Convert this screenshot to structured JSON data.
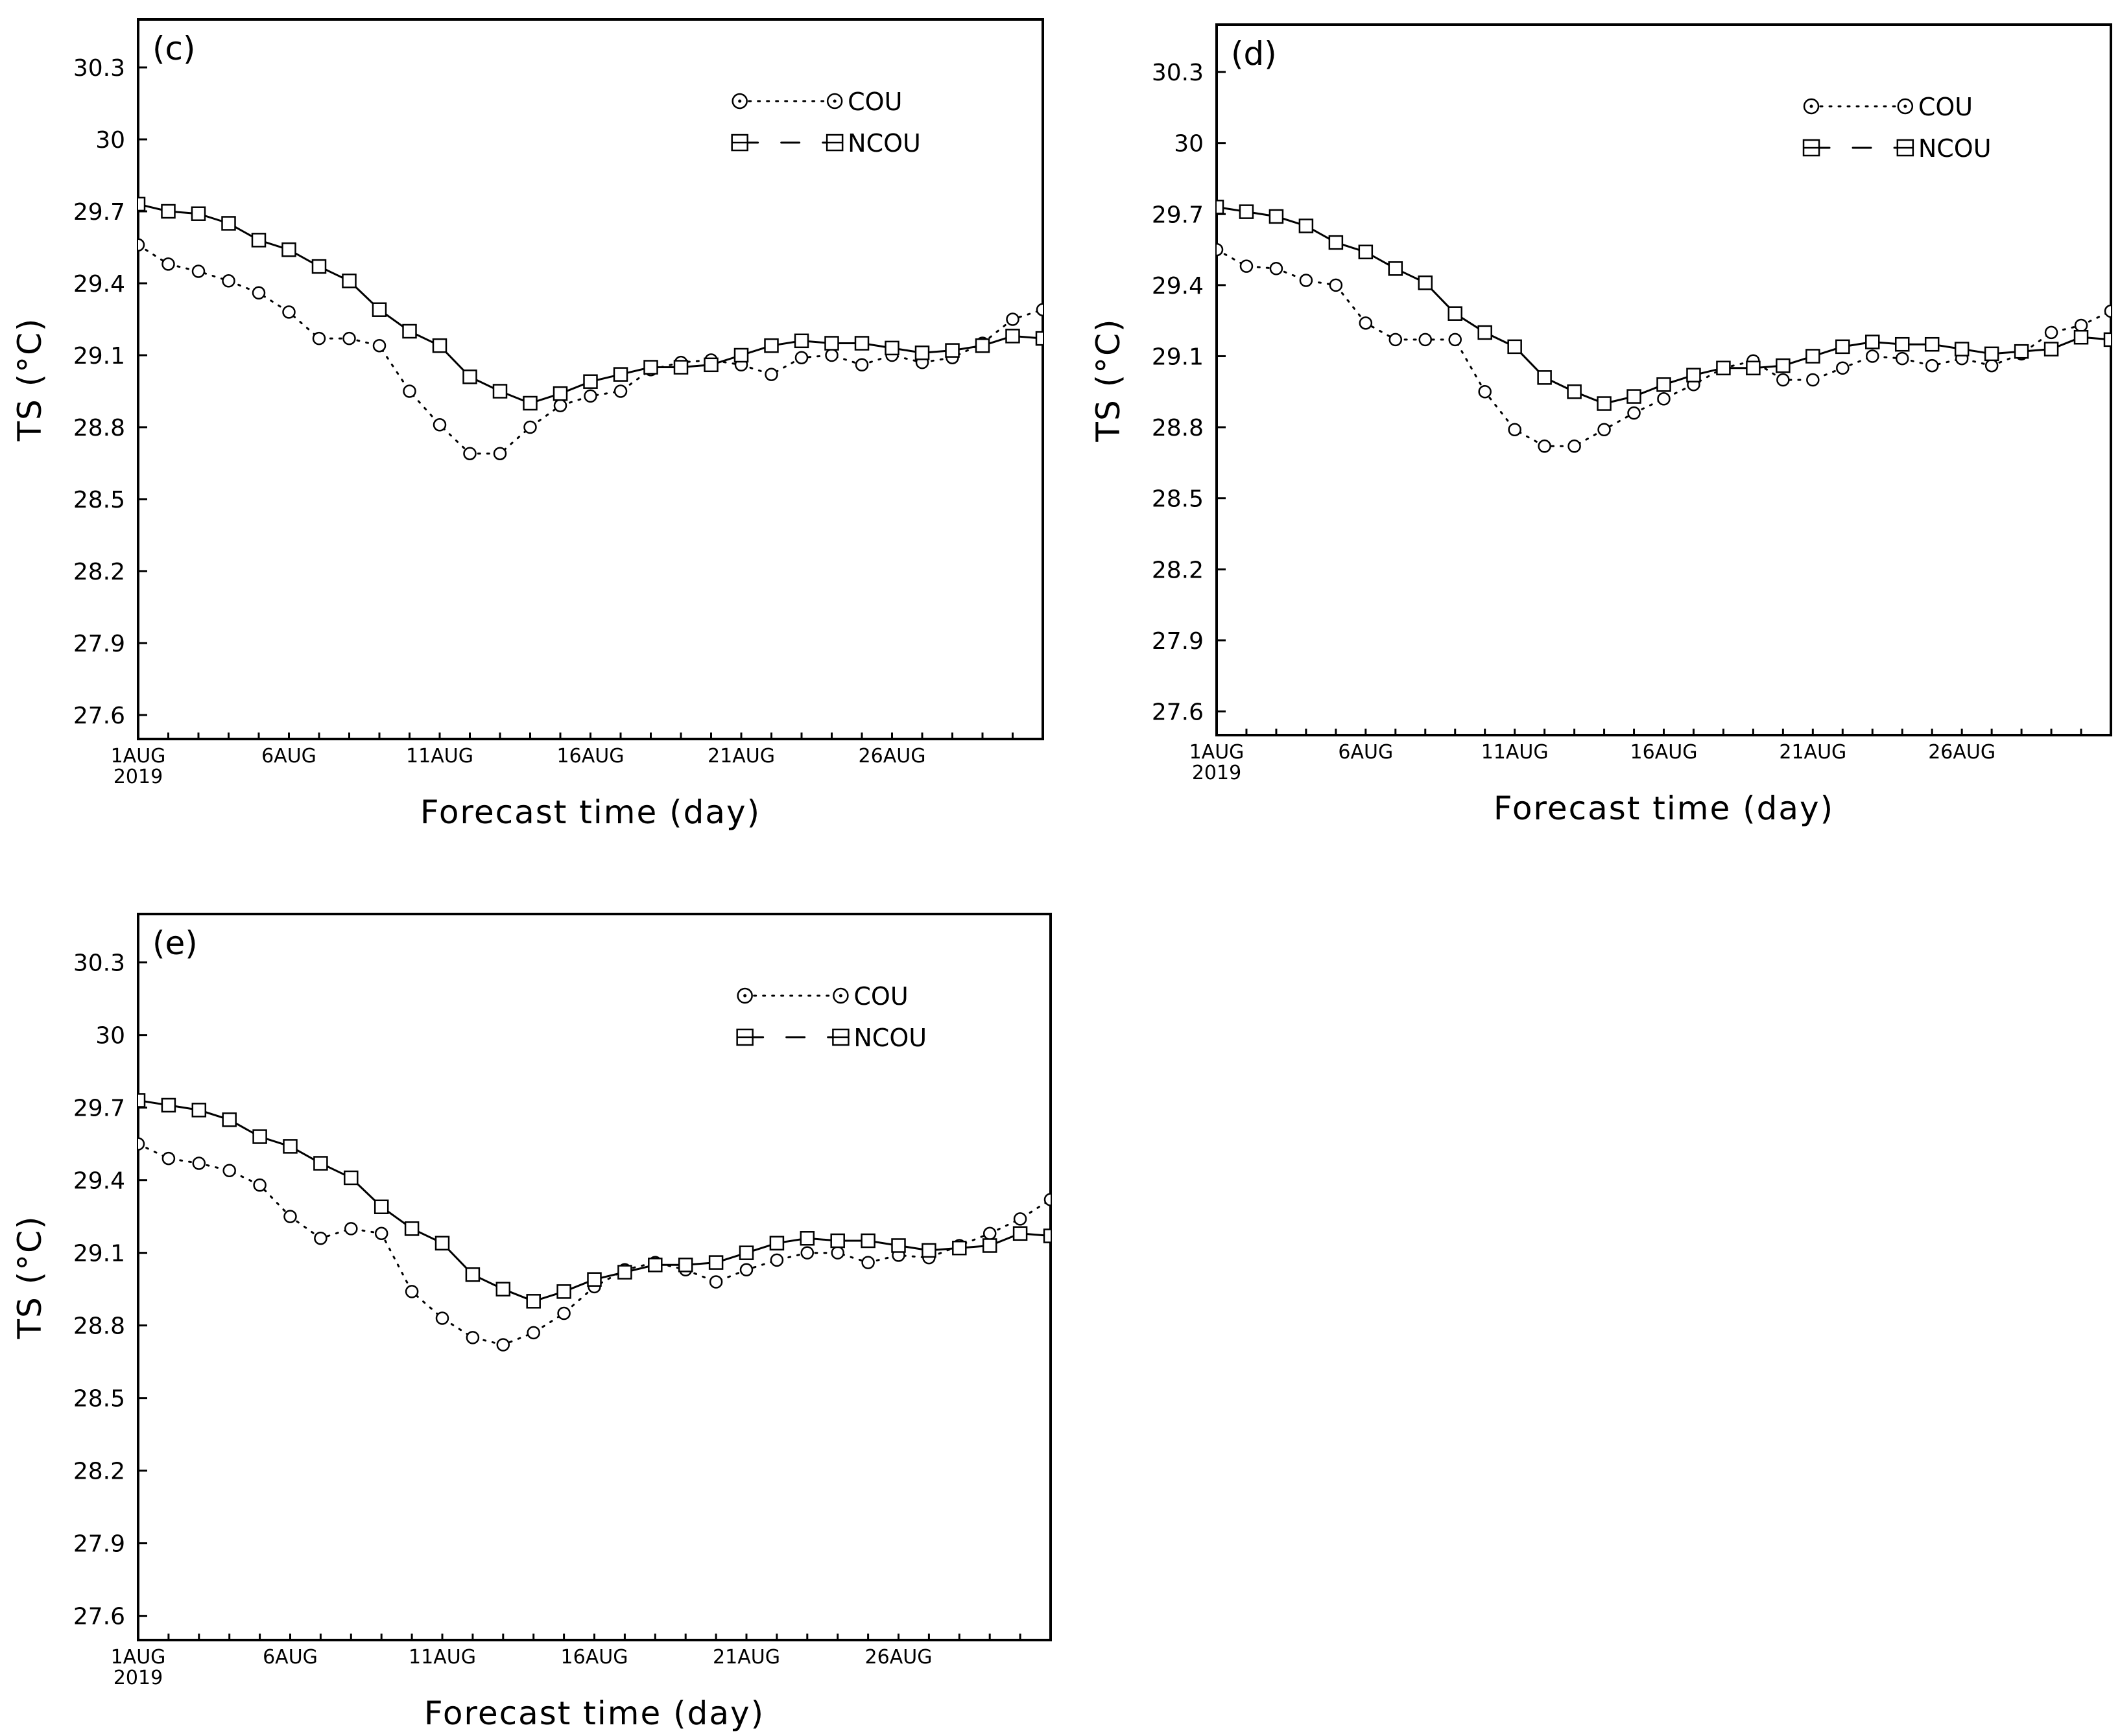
{
  "figure": {
    "colors": {
      "line": "#000000",
      "background": "#ffffff"
    }
  },
  "chart_data": [
    {
      "type": "line",
      "panel_label": "(c)",
      "xlabel": "Forecast time (day)",
      "ylabel": "TS (°C)",
      "ylim": [
        27.5,
        30.5
      ],
      "yticks": [
        "27.6",
        "27.9",
        "28.2",
        "28.5",
        "28.8",
        "29.1",
        "29.4",
        "29.7",
        "30",
        "30.3"
      ],
      "xticks": [
        {
          "day": 1,
          "label": "1AUG",
          "sub": "2019"
        },
        {
          "day": 6,
          "label": "6AUG"
        },
        {
          "day": 11,
          "label": "11AUG"
        },
        {
          "day": 16,
          "label": "16AUG"
        },
        {
          "day": 21,
          "label": "21AUG"
        },
        {
          "day": 26,
          "label": "26AUG"
        }
      ],
      "xlim": [
        1,
        31
      ],
      "x": [
        1,
        2,
        3,
        4,
        5,
        6,
        7,
        8,
        9,
        10,
        11,
        12,
        13,
        14,
        15,
        16,
        17,
        18,
        19,
        20,
        21,
        22,
        23,
        24,
        25,
        26,
        27,
        28,
        29,
        30,
        31
      ],
      "legend": [
        "COU",
        "NCOU"
      ],
      "series": [
        {
          "name": "COU",
          "style": "dotted-circle",
          "values": [
            29.56,
            29.48,
            29.45,
            29.41,
            29.36,
            29.28,
            29.17,
            29.17,
            29.14,
            28.95,
            28.81,
            28.69,
            28.69,
            28.8,
            28.89,
            28.93,
            28.95,
            29.04,
            29.07,
            29.08,
            29.06,
            29.02,
            29.09,
            29.1,
            29.06,
            29.1,
            29.07,
            29.09,
            29.15,
            29.25,
            29.29
          ]
        },
        {
          "name": "NCOU",
          "style": "solid-square",
          "values": [
            29.73,
            29.7,
            29.69,
            29.65,
            29.58,
            29.54,
            29.47,
            29.41,
            29.29,
            29.2,
            29.14,
            29.01,
            28.95,
            28.9,
            28.94,
            28.99,
            29.02,
            29.05,
            29.05,
            29.06,
            29.1,
            29.14,
            29.16,
            29.15,
            29.15,
            29.13,
            29.11,
            29.12,
            29.14,
            29.18,
            29.17
          ]
        }
      ]
    },
    {
      "type": "line",
      "panel_label": "(d)",
      "xlabel": "Forecast time (day)",
      "ylabel": "TS (°C)",
      "ylim": [
        27.5,
        30.5
      ],
      "yticks": [
        "27.6",
        "27.9",
        "28.2",
        "28.5",
        "28.8",
        "29.1",
        "29.4",
        "29.7",
        "30",
        "30.3"
      ],
      "xticks": [
        {
          "day": 1,
          "label": "1AUG",
          "sub": "2019"
        },
        {
          "day": 6,
          "label": "6AUG"
        },
        {
          "day": 11,
          "label": "11AUG"
        },
        {
          "day": 16,
          "label": "16AUG"
        },
        {
          "day": 21,
          "label": "21AUG"
        },
        {
          "day": 26,
          "label": "26AUG"
        }
      ],
      "xlim": [
        1,
        31
      ],
      "x": [
        1,
        2,
        3,
        4,
        5,
        6,
        7,
        8,
        9,
        10,
        11,
        12,
        13,
        14,
        15,
        16,
        17,
        18,
        19,
        20,
        21,
        22,
        23,
        24,
        25,
        26,
        27,
        28,
        29,
        30,
        31
      ],
      "legend": [
        "COU",
        "NCOU"
      ],
      "series": [
        {
          "name": "COU",
          "style": "dotted-circle",
          "values": [
            29.55,
            29.48,
            29.47,
            29.42,
            29.4,
            29.24,
            29.17,
            29.17,
            29.17,
            28.95,
            28.79,
            28.72,
            28.72,
            28.79,
            28.86,
            28.92,
            28.98,
            29.05,
            29.08,
            29.0,
            29.0,
            29.05,
            29.1,
            29.09,
            29.06,
            29.09,
            29.06,
            29.11,
            29.2,
            29.23,
            29.29
          ]
        },
        {
          "name": "NCOU",
          "style": "solid-square",
          "values": [
            29.73,
            29.71,
            29.69,
            29.65,
            29.58,
            29.54,
            29.47,
            29.41,
            29.28,
            29.2,
            29.14,
            29.01,
            28.95,
            28.9,
            28.93,
            28.98,
            29.02,
            29.05,
            29.05,
            29.06,
            29.1,
            29.14,
            29.16,
            29.15,
            29.15,
            29.13,
            29.11,
            29.12,
            29.13,
            29.18,
            29.17
          ]
        }
      ]
    },
    {
      "type": "line",
      "panel_label": "(e)",
      "xlabel": "Forecast time (day)",
      "ylabel": "TS (°C)",
      "ylim": [
        27.5,
        30.5
      ],
      "yticks": [
        "27.6",
        "27.9",
        "28.2",
        "28.5",
        "28.8",
        "29.1",
        "29.4",
        "29.7",
        "30",
        "30.3"
      ],
      "xticks": [
        {
          "day": 1,
          "label": "1AUG",
          "sub": "2019"
        },
        {
          "day": 6,
          "label": "6AUG"
        },
        {
          "day": 11,
          "label": "11AUG"
        },
        {
          "day": 16,
          "label": "16AUG"
        },
        {
          "day": 21,
          "label": "21AUG"
        },
        {
          "day": 26,
          "label": "26AUG"
        }
      ],
      "xlim": [
        1,
        31
      ],
      "x": [
        1,
        2,
        3,
        4,
        5,
        6,
        7,
        8,
        9,
        10,
        11,
        12,
        13,
        14,
        15,
        16,
        17,
        18,
        19,
        20,
        21,
        22,
        23,
        24,
        25,
        26,
        27,
        28,
        29,
        30,
        31
      ],
      "legend": [
        "COU",
        "NCOU"
      ],
      "series": [
        {
          "name": "COU",
          "style": "dotted-circle",
          "values": [
            29.55,
            29.49,
            29.47,
            29.44,
            29.38,
            29.25,
            29.16,
            29.2,
            29.18,
            28.94,
            28.83,
            28.75,
            28.72,
            28.77,
            28.85,
            28.96,
            29.03,
            29.06,
            29.03,
            28.98,
            29.03,
            29.07,
            29.1,
            29.1,
            29.06,
            29.09,
            29.08,
            29.13,
            29.18,
            29.24,
            29.32
          ]
        },
        {
          "name": "NCOU",
          "style": "solid-square",
          "values": [
            29.73,
            29.71,
            29.69,
            29.65,
            29.58,
            29.54,
            29.47,
            29.41,
            29.29,
            29.2,
            29.14,
            29.01,
            28.95,
            28.9,
            28.94,
            28.99,
            29.02,
            29.05,
            29.05,
            29.06,
            29.1,
            29.14,
            29.16,
            29.15,
            29.15,
            29.13,
            29.11,
            29.12,
            29.13,
            29.18,
            29.17
          ]
        }
      ]
    }
  ]
}
